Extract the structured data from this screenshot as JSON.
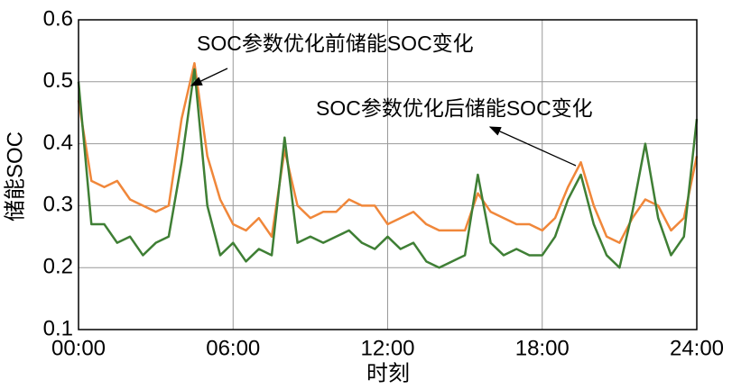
{
  "chart_data": {
    "type": "line",
    "xlabel": "时刻",
    "ylabel": "储能SOC",
    "x": [
      0,
      0.5,
      1,
      1.5,
      2,
      2.5,
      3,
      3.5,
      4,
      4.5,
      5,
      5.5,
      6,
      6.5,
      7,
      7.5,
      8,
      8.5,
      9,
      9.5,
      10,
      10.5,
      11,
      11.5,
      12,
      12.5,
      13,
      13.5,
      14,
      14.5,
      15,
      15.5,
      16,
      16.5,
      17,
      17.5,
      18,
      18.5,
      19,
      19.5,
      20,
      20.5,
      21,
      21.5,
      22,
      22.5,
      23,
      23.5,
      24
    ],
    "series": [
      {
        "name": "SOC参数优化前储能SOC变化",
        "color": "#f0873a",
        "values": [
          0.47,
          0.34,
          0.33,
          0.34,
          0.31,
          0.3,
          0.29,
          0.3,
          0.44,
          0.53,
          0.38,
          0.31,
          0.27,
          0.26,
          0.28,
          0.25,
          0.39,
          0.3,
          0.28,
          0.29,
          0.29,
          0.31,
          0.3,
          0.3,
          0.27,
          0.28,
          0.29,
          0.27,
          0.26,
          0.26,
          0.26,
          0.32,
          0.29,
          0.28,
          0.27,
          0.27,
          0.26,
          0.28,
          0.33,
          0.37,
          0.3,
          0.25,
          0.24,
          0.28,
          0.31,
          0.3,
          0.26,
          0.28,
          0.38
        ]
      },
      {
        "name": "SOC参数优化后储能SOC变化",
        "color": "#3f7f35",
        "values": [
          0.5,
          0.27,
          0.27,
          0.24,
          0.25,
          0.22,
          0.24,
          0.25,
          0.37,
          0.52,
          0.3,
          0.22,
          0.24,
          0.21,
          0.23,
          0.22,
          0.41,
          0.24,
          0.25,
          0.24,
          0.25,
          0.26,
          0.24,
          0.23,
          0.25,
          0.23,
          0.24,
          0.21,
          0.2,
          0.21,
          0.22,
          0.35,
          0.24,
          0.22,
          0.23,
          0.22,
          0.22,
          0.25,
          0.31,
          0.35,
          0.27,
          0.22,
          0.2,
          0.29,
          0.4,
          0.28,
          0.22,
          0.25,
          0.44
        ]
      }
    ],
    "xlim": [
      0,
      24
    ],
    "xticks": [
      {
        "value": 0,
        "label": "00:00"
      },
      {
        "value": 6,
        "label": "06:00"
      },
      {
        "value": 12,
        "label": "12:00"
      },
      {
        "value": 18,
        "label": "18:00"
      },
      {
        "value": 24,
        "label": "24:00"
      }
    ],
    "ylim": [
      0.1,
      0.6
    ],
    "yticks": [
      0.1,
      0.2,
      0.3,
      0.4,
      0.5,
      0.6
    ],
    "grid": true
  }
}
